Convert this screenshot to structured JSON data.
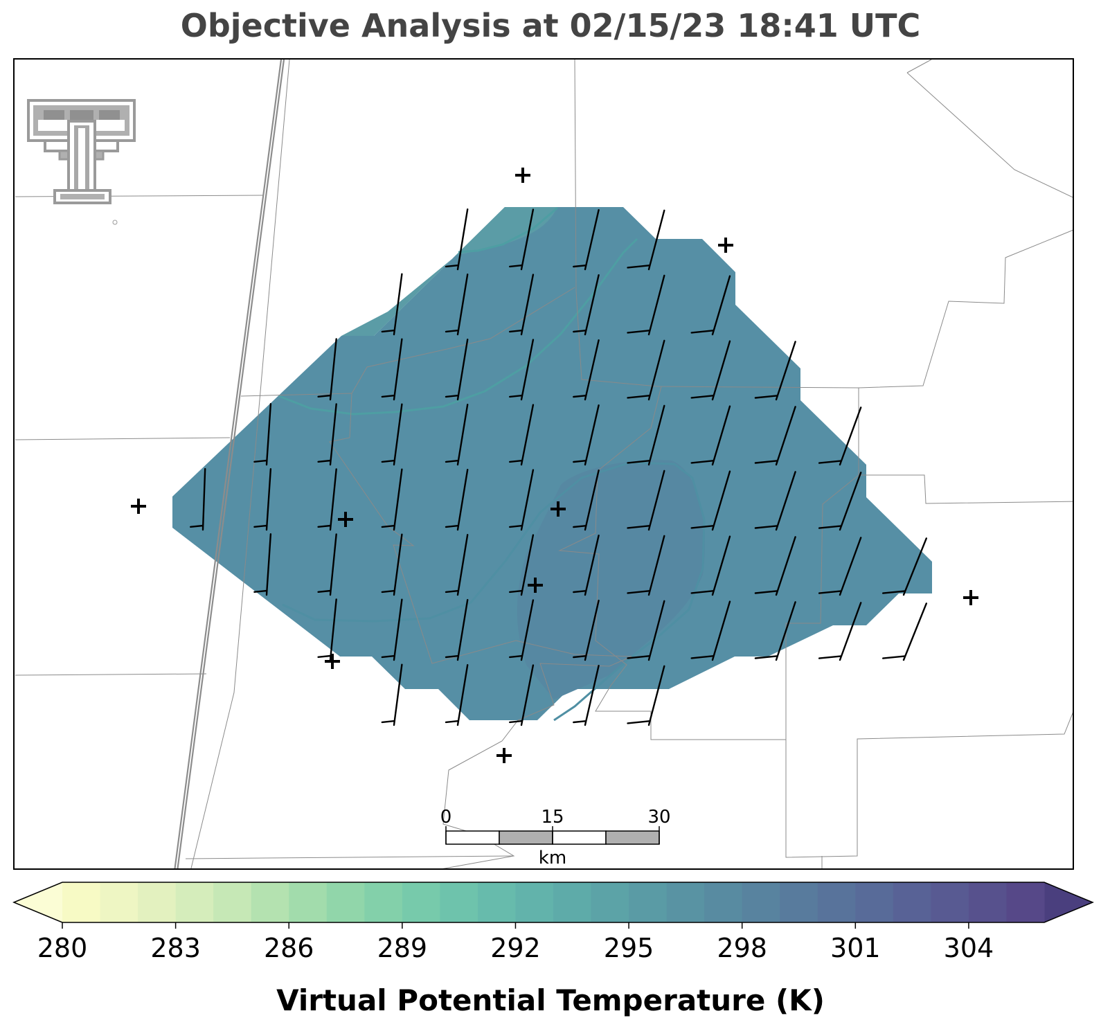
{
  "title": "Objective Analysis at 02/15/23 18:41 UTC",
  "colorbar": {
    "label": "Virtual Potential Temperature (K)",
    "min": 280,
    "max": 306,
    "ticks": [
      "280",
      "283",
      "286",
      "289",
      "292",
      "295",
      "298",
      "301",
      "304"
    ],
    "tick_values": [
      280,
      283,
      286,
      289,
      292,
      295,
      298,
      301,
      304
    ],
    "extend": "both",
    "colors": [
      "#f7fac5",
      "#eef6c3",
      "#e3f1bf",
      "#d5edbb",
      "#c6e8b6",
      "#b4e2b0",
      "#a2dcac",
      "#91d6aa",
      "#83d0aa",
      "#77caab",
      "#6ec3ac",
      "#67bbac",
      "#62b3ab",
      "#5eaba9",
      "#5ca3a7",
      "#5a9ba5",
      "#5993a3",
      "#588ba1",
      "#58839f",
      "#587b9d",
      "#58739b",
      "#586b99",
      "#586296",
      "#585a92",
      "#57518d",
      "#564888"
    ],
    "under_color": "#fbfdd5",
    "over_color": "#4a3f7e"
  },
  "scale_bar": {
    "labels": [
      "0",
      "15",
      "30"
    ],
    "unit": "km"
  },
  "logo": "texas-tech-double-t-logo",
  "field": {
    "variable": "virtual potential temperature",
    "units": "K",
    "fill_color_main": "#568fa5",
    "fill_color_warm": "#5887a2",
    "fill_color_cool": "#5aa0a6"
  },
  "stations": 9,
  "wind_barbs": "analysis grid wind barbs"
}
